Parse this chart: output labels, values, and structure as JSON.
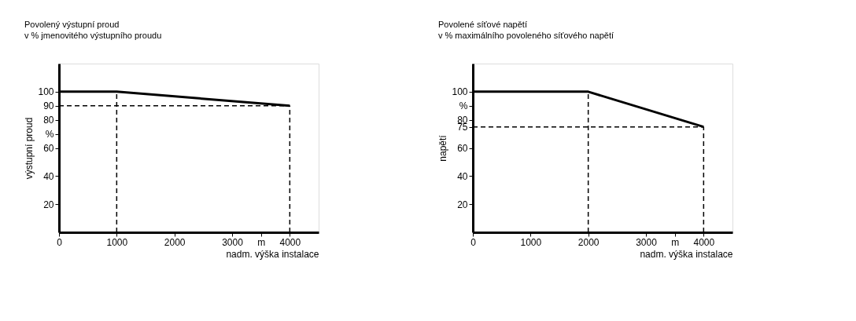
{
  "chart_data": [
    {
      "type": "line",
      "title": "Povolený výstupní proud",
      "subtitle": "v % jmenovitého výstupního proudu",
      "xlabel": "nadm. výška instalace",
      "ylabel": "výstupní proud",
      "x": [
        0,
        1000,
        4000
      ],
      "series": [
        {
          "color": "#000000",
          "values": [
            100,
            100,
            90
          ]
        }
      ],
      "xlim": [
        0,
        4500
      ],
      "ylim": [
        0,
        120
      ],
      "xticks": [
        0,
        1000,
        2000,
        3000,
        {
          "value": 3500,
          "label": "m"
        },
        4000
      ],
      "yticks": [
        20,
        40,
        60,
        {
          "value": 70,
          "label": "%"
        },
        80,
        90,
        100
      ],
      "ref_lines": [
        {
          "axis": "x",
          "value": 1000,
          "color": "#000000",
          "line_style": "dashed"
        },
        {
          "axis": "y",
          "value": 90,
          "color": "#000000",
          "line_style": "dashed"
        },
        {
          "axis": "x",
          "value": 4000,
          "color": "#000000",
          "line_style": "dashed"
        }
      ],
      "grid": false,
      "legend": false,
      "marker": "none",
      "line_style": "solid"
    },
    {
      "type": "line",
      "title": "Povolené síťové napětí",
      "subtitle": "v % maximálního povoleného síťového napětí",
      "xlabel": "nadm. výška instalace",
      "ylabel": "napětí",
      "x": [
        0,
        2000,
        4000
      ],
      "series": [
        {
          "color": "#000000",
          "values": [
            100,
            100,
            75
          ]
        }
      ],
      "xlim": [
        0,
        4500
      ],
      "ylim": [
        0,
        120
      ],
      "xticks": [
        0,
        1000,
        2000,
        3000,
        {
          "value": 3500,
          "label": "m"
        },
        4000
      ],
      "yticks": [
        20,
        40,
        60,
        75,
        80,
        {
          "value": 90,
          "label": "%"
        },
        100
      ],
      "ref_lines": [
        {
          "axis": "x",
          "value": 2000,
          "color": "#000000",
          "line_style": "dashed"
        },
        {
          "axis": "y",
          "value": 75,
          "color": "#000000",
          "line_style": "dashed"
        },
        {
          "axis": "x",
          "value": 4000,
          "color": "#000000",
          "line_style": "dashed"
        }
      ],
      "grid": false,
      "legend": false,
      "marker": "none",
      "line_style": "solid"
    }
  ]
}
